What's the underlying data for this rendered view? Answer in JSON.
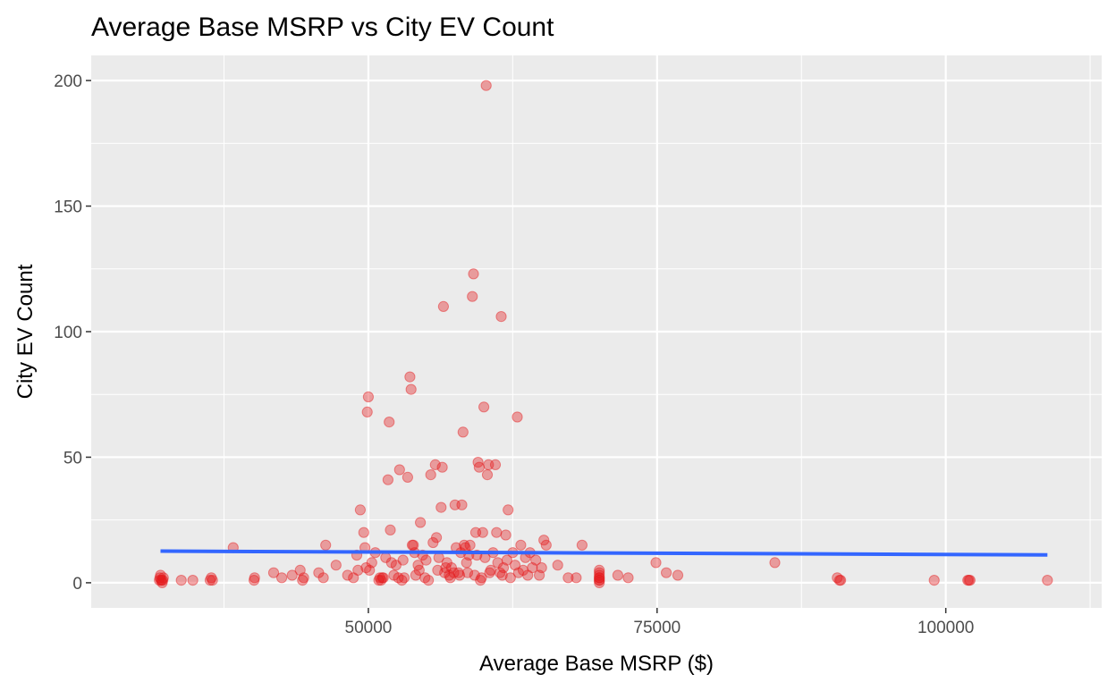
{
  "chart_data": {
    "type": "scatter",
    "title": "Average Base MSRP vs City EV Count",
    "xlabel": "Average Base MSRP ($)",
    "ylabel": "City EV Count",
    "xlim": [
      26000,
      113500
    ],
    "ylim": [
      -10,
      210
    ],
    "x_ticks": [
      50000,
      75000,
      100000
    ],
    "x_tick_labels": [
      "50000",
      "75000",
      "100000"
    ],
    "y_ticks": [
      0,
      50,
      100,
      150,
      200
    ],
    "y_tick_labels": [
      "0",
      "50",
      "100",
      "150",
      "200"
    ],
    "grid": true,
    "legend": "none",
    "colors": {
      "panel_background": "#EBEBEB",
      "gridline": "#FFFFFF",
      "point": "#E41A1C",
      "trend_line": "#3366FF",
      "text": "#000000",
      "tick_text": "#4D4D4D"
    },
    "series": [
      {
        "kind": "points",
        "points": [
          [
            31900,
            1
          ],
          [
            31950,
            2
          ],
          [
            32000,
            3
          ],
          [
            32050,
            1
          ],
          [
            32100,
            1
          ],
          [
            32150,
            0
          ],
          [
            32200,
            1
          ],
          [
            32250,
            2
          ],
          [
            33800,
            1
          ],
          [
            34800,
            1
          ],
          [
            36300,
            1
          ],
          [
            36400,
            2
          ],
          [
            36500,
            1
          ],
          [
            38300,
            14
          ],
          [
            40100,
            1
          ],
          [
            40150,
            2
          ],
          [
            41800,
            4
          ],
          [
            42500,
            2
          ],
          [
            43400,
            3
          ],
          [
            44100,
            5
          ],
          [
            44300,
            1
          ],
          [
            44400,
            2
          ],
          [
            45700,
            4
          ],
          [
            46100,
            2
          ],
          [
            46300,
            15
          ],
          [
            47200,
            7
          ],
          [
            48200,
            3
          ],
          [
            48700,
            2
          ],
          [
            49000,
            11
          ],
          [
            49100,
            5
          ],
          [
            49300,
            29
          ],
          [
            49600,
            20
          ],
          [
            49700,
            14
          ],
          [
            49800,
            6
          ],
          [
            49900,
            68
          ],
          [
            50000,
            74
          ],
          [
            50100,
            5
          ],
          [
            50300,
            8
          ],
          [
            50600,
            12
          ],
          [
            50900,
            1
          ],
          [
            51000,
            2
          ],
          [
            51100,
            1
          ],
          [
            51200,
            2
          ],
          [
            51300,
            2
          ],
          [
            51500,
            10
          ],
          [
            51700,
            41
          ],
          [
            51800,
            64
          ],
          [
            51900,
            21
          ],
          [
            52000,
            8
          ],
          [
            52200,
            3
          ],
          [
            52400,
            7
          ],
          [
            52600,
            2
          ],
          [
            52700,
            45
          ],
          [
            52900,
            1
          ],
          [
            53000,
            9
          ],
          [
            53100,
            2
          ],
          [
            53400,
            42
          ],
          [
            53600,
            82
          ],
          [
            53700,
            77
          ],
          [
            53800,
            15
          ],
          [
            53900,
            15
          ],
          [
            54000,
            12
          ],
          [
            54100,
            3
          ],
          [
            54300,
            7
          ],
          [
            54400,
            5
          ],
          [
            54500,
            24
          ],
          [
            54700,
            11
          ],
          [
            54900,
            2
          ],
          [
            55000,
            9
          ],
          [
            55200,
            1
          ],
          [
            55400,
            43
          ],
          [
            55600,
            16
          ],
          [
            55800,
            47
          ],
          [
            55900,
            18
          ],
          [
            56000,
            5
          ],
          [
            56100,
            10
          ],
          [
            56300,
            30
          ],
          [
            56400,
            46
          ],
          [
            56500,
            110
          ],
          [
            56600,
            4
          ],
          [
            56700,
            6
          ],
          [
            56800,
            8
          ],
          [
            57000,
            3
          ],
          [
            57100,
            2
          ],
          [
            57200,
            6
          ],
          [
            57400,
            4
          ],
          [
            57500,
            31
          ],
          [
            57600,
            14
          ],
          [
            57800,
            4
          ],
          [
            57900,
            3
          ],
          [
            58000,
            12
          ],
          [
            58100,
            31
          ],
          [
            58200,
            60
          ],
          [
            58300,
            15
          ],
          [
            58400,
            14
          ],
          [
            58500,
            8
          ],
          [
            58600,
            4
          ],
          [
            58700,
            11
          ],
          [
            58800,
            15
          ],
          [
            59000,
            114
          ],
          [
            59100,
            123
          ],
          [
            59200,
            3
          ],
          [
            59300,
            20
          ],
          [
            59400,
            11
          ],
          [
            59500,
            48
          ],
          [
            59600,
            46
          ],
          [
            59700,
            1
          ],
          [
            59800,
            2
          ],
          [
            59900,
            20
          ],
          [
            60000,
            70
          ],
          [
            60100,
            10
          ],
          [
            60200,
            198
          ],
          [
            60300,
            43
          ],
          [
            60400,
            47
          ],
          [
            60500,
            4
          ],
          [
            60600,
            5
          ],
          [
            60800,
            12
          ],
          [
            61000,
            47
          ],
          [
            61100,
            20
          ],
          [
            61200,
            8
          ],
          [
            61400,
            4
          ],
          [
            61500,
            106
          ],
          [
            61600,
            3
          ],
          [
            61700,
            6
          ],
          [
            61900,
            19
          ],
          [
            62000,
            9
          ],
          [
            62100,
            29
          ],
          [
            62300,
            2
          ],
          [
            62500,
            12
          ],
          [
            62700,
            7
          ],
          [
            62900,
            66
          ],
          [
            63000,
            4
          ],
          [
            63200,
            15
          ],
          [
            63400,
            5
          ],
          [
            63600,
            10
          ],
          [
            63800,
            3
          ],
          [
            64000,
            12
          ],
          [
            64200,
            6
          ],
          [
            64500,
            9
          ],
          [
            64800,
            3
          ],
          [
            65000,
            6
          ],
          [
            65200,
            17
          ],
          [
            65400,
            15
          ],
          [
            66400,
            7
          ],
          [
            67300,
            2
          ],
          [
            68000,
            2
          ],
          [
            68500,
            15
          ],
          [
            70000,
            0
          ],
          [
            70000,
            1
          ],
          [
            70000,
            1
          ],
          [
            70000,
            2
          ],
          [
            70000,
            2
          ],
          [
            70000,
            3
          ],
          [
            70000,
            4
          ],
          [
            70000,
            5
          ],
          [
            71600,
            3
          ],
          [
            72500,
            2
          ],
          [
            74900,
            8
          ],
          [
            75800,
            4
          ],
          [
            76800,
            3
          ],
          [
            85200,
            8
          ],
          [
            90600,
            2
          ],
          [
            90800,
            1
          ],
          [
            90900,
            1
          ],
          [
            99000,
            1
          ],
          [
            101900,
            1
          ],
          [
            102000,
            1
          ],
          [
            102100,
            1
          ],
          [
            108800,
            1
          ]
        ]
      },
      {
        "kind": "trend_line",
        "x": [
          32000,
          108800
        ],
        "y": [
          12.6,
          11.1
        ]
      }
    ]
  }
}
